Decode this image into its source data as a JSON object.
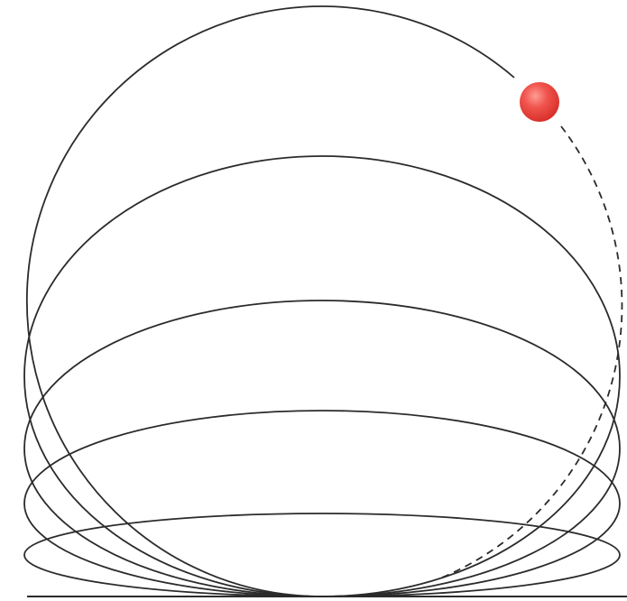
{
  "diagram": {
    "ball_color": "#e8403a",
    "line_color": "#2b2b2b",
    "curves": [
      {
        "kind": "ellipse",
        "style": "solid"
      },
      {
        "kind": "ellipse",
        "style": "solid"
      },
      {
        "kind": "ellipse",
        "style": "solid"
      },
      {
        "kind": "ellipse",
        "style": "solid"
      },
      {
        "kind": "circle-arc",
        "style": "solid-with-dashed-segment"
      }
    ]
  }
}
